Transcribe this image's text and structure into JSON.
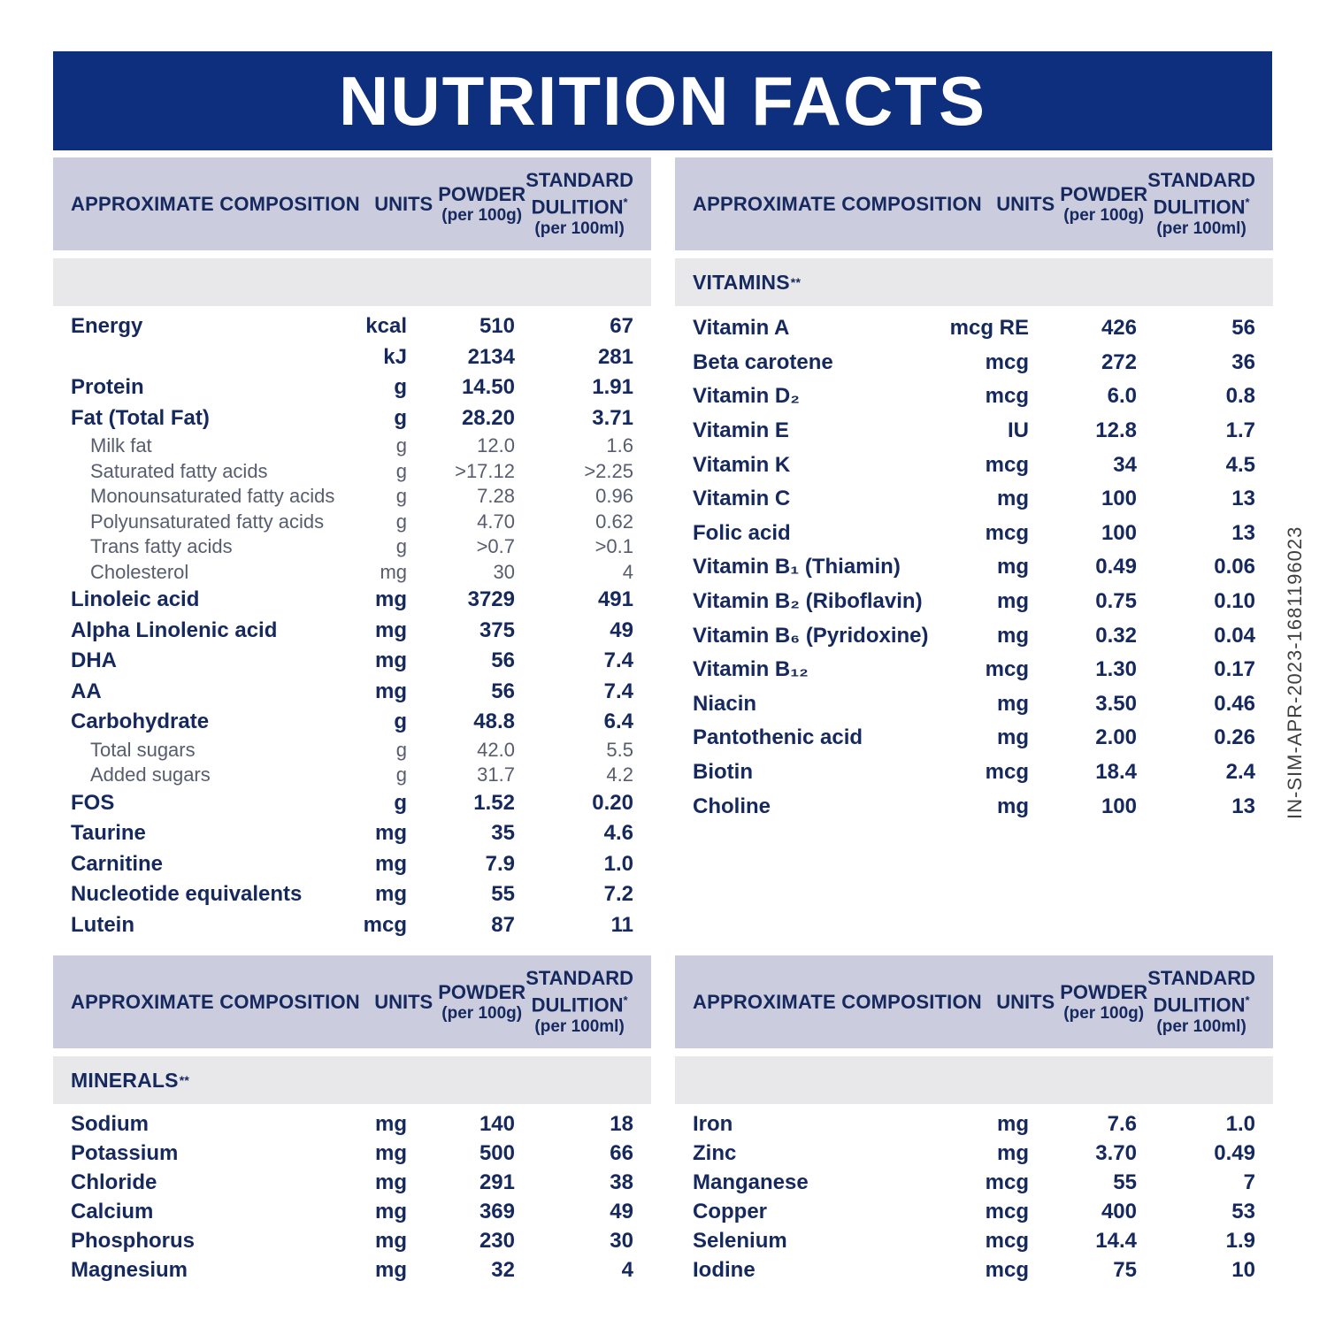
{
  "page": {
    "title": "NUTRITION FACTS",
    "side_code": "IN-SIM-APR-2023-1681196023"
  },
  "colors": {
    "title_bar_bg": "#0D2F7D",
    "title_text": "#FFFFFF",
    "column_header_bg": "#CBCCDD",
    "section_band_bg": "#E8E8EB",
    "text_navy": "#16295F",
    "text_sub_gray": "#575D6E",
    "side_code_text": "#404040"
  },
  "column_headers": {
    "composition": "APPROXIMATE COMPOSITION",
    "units": "UNITS",
    "powder_line1": "POWDER",
    "powder_line2": "(per 100g)",
    "dilution_line1": "STANDARD",
    "dilution_line2": "DULITION",
    "dilution_mark": "*",
    "dilution_line3": "(per 100ml)"
  },
  "tables": [
    {
      "id": "general",
      "section": "",
      "section_marks": "",
      "rows": [
        {
          "name": "Energy",
          "unit": "kcal",
          "powder": "510",
          "dilution": "67"
        },
        {
          "name": "",
          "unit": "kJ",
          "powder": "2134",
          "dilution": "281"
        },
        {
          "name": "Protein",
          "unit": "g",
          "powder": "14.50",
          "dilution": "1.91"
        },
        {
          "name": "Fat (Total Fat)",
          "unit": "g",
          "powder": "28.20",
          "dilution": "3.71"
        },
        {
          "name": "Milk fat",
          "unit": "g",
          "powder": "12.0",
          "dilution": "1.6",
          "sub": true
        },
        {
          "name": "Saturated fatty acids",
          "unit": "g",
          "powder": ">17.12",
          "dilution": ">2.25",
          "sub": true
        },
        {
          "name": "Monounsaturated fatty acids",
          "unit": "g",
          "powder": "7.28",
          "dilution": "0.96",
          "sub": true
        },
        {
          "name": "Polyunsaturated fatty acids",
          "unit": "g",
          "powder": "4.70",
          "dilution": "0.62",
          "sub": true
        },
        {
          "name": "Trans fatty acids",
          "unit": "g",
          "powder": ">0.7",
          "dilution": ">0.1",
          "sub": true
        },
        {
          "name": "Cholesterol",
          "unit": "mg",
          "powder": "30",
          "dilution": "4",
          "sub": true
        },
        {
          "name": "Linoleic acid",
          "unit": "mg",
          "powder": "3729",
          "dilution": "491"
        },
        {
          "name": "Alpha Linolenic acid",
          "unit": "mg",
          "powder": "375",
          "dilution": "49"
        },
        {
          "name": "DHA",
          "unit": "mg",
          "powder": "56",
          "dilution": "7.4"
        },
        {
          "name": "AA",
          "unit": "mg",
          "powder": "56",
          "dilution": "7.4"
        },
        {
          "name": "Carbohydrate",
          "unit": "g",
          "powder": "48.8",
          "dilution": "6.4"
        },
        {
          "name": "Total sugars",
          "unit": "g",
          "powder": "42.0",
          "dilution": "5.5",
          "sub": true
        },
        {
          "name": "Added sugars",
          "unit": "g",
          "powder": "31.7",
          "dilution": "4.2",
          "sub": true
        },
        {
          "name": "FOS",
          "unit": "g",
          "powder": "1.52",
          "dilution": "0.20"
        },
        {
          "name": "Taurine",
          "unit": "mg",
          "powder": "35",
          "dilution": "4.6"
        },
        {
          "name": "Carnitine",
          "unit": "mg",
          "powder": "7.9",
          "dilution": "1.0"
        },
        {
          "name": "Nucleotide equivalents",
          "unit": "mg",
          "powder": "55",
          "dilution": "7.2"
        },
        {
          "name": "Lutein",
          "unit": "mcg",
          "powder": "87",
          "dilution": "11"
        }
      ]
    },
    {
      "id": "vitamins",
      "section": "VITAMINS",
      "section_marks": "**",
      "rows": [
        {
          "name": "Vitamin A",
          "unit": "mcg RE",
          "powder": "426",
          "dilution": "56"
        },
        {
          "name": "Beta carotene",
          "unit": "mcg",
          "powder": "272",
          "dilution": "36"
        },
        {
          "name": "Vitamin D₂",
          "unit": "mcg",
          "powder": "6.0",
          "dilution": "0.8"
        },
        {
          "name": "Vitamin E",
          "unit": "IU",
          "powder": "12.8",
          "dilution": "1.7"
        },
        {
          "name": "Vitamin K",
          "unit": "mcg",
          "powder": "34",
          "dilution": "4.5"
        },
        {
          "name": "Vitamin C",
          "unit": "mg",
          "powder": "100",
          "dilution": "13"
        },
        {
          "name": "Folic acid",
          "unit": "mcg",
          "powder": "100",
          "dilution": "13"
        },
        {
          "name": "Vitamin B₁ (Thiamin)",
          "unit": "mg",
          "powder": "0.49",
          "dilution": "0.06"
        },
        {
          "name": "Vitamin B₂ (Riboflavin)",
          "unit": "mg",
          "powder": "0.75",
          "dilution": "0.10"
        },
        {
          "name": "Vitamin B₆ (Pyridoxine)",
          "unit": "mg",
          "powder": "0.32",
          "dilution": "0.04"
        },
        {
          "name": "Vitamin B₁₂",
          "unit": "mcg",
          "powder": "1.30",
          "dilution": "0.17"
        },
        {
          "name": "Niacin",
          "unit": "mg",
          "powder": "3.50",
          "dilution": "0.46"
        },
        {
          "name": "Pantothenic acid",
          "unit": "mg",
          "powder": "2.00",
          "dilution": "0.26"
        },
        {
          "name": "Biotin",
          "unit": "mcg",
          "powder": "18.4",
          "dilution": "2.4"
        },
        {
          "name": "Choline",
          "unit": "mg",
          "powder": "100",
          "dilution": "13"
        }
      ]
    },
    {
      "id": "minerals",
      "section": "MINERALS",
      "section_marks": "**",
      "rows": [
        {
          "name": "Sodium",
          "unit": "mg",
          "powder": "140",
          "dilution": "18"
        },
        {
          "name": "Potassium",
          "unit": "mg",
          "powder": "500",
          "dilution": "66"
        },
        {
          "name": "Chloride",
          "unit": "mg",
          "powder": "291",
          "dilution": "38"
        },
        {
          "name": "Calcium",
          "unit": "mg",
          "powder": "369",
          "dilution": "49"
        },
        {
          "name": "Phosphorus",
          "unit": "mg",
          "powder": "230",
          "dilution": "30"
        },
        {
          "name": "Magnesium",
          "unit": "mg",
          "powder": "32",
          "dilution": "4"
        }
      ]
    },
    {
      "id": "trace-minerals",
      "section": "",
      "section_marks": "",
      "rows": [
        {
          "name": "Iron",
          "unit": "mg",
          "powder": "7.6",
          "dilution": "1.0"
        },
        {
          "name": "Zinc",
          "unit": "mg",
          "powder": "3.70",
          "dilution": "0.49"
        },
        {
          "name": "Manganese",
          "unit": "mcg",
          "powder": "55",
          "dilution": "7"
        },
        {
          "name": "Copper",
          "unit": "mcg",
          "powder": "400",
          "dilution": "53"
        },
        {
          "name": "Selenium",
          "unit": "mcg",
          "powder": "14.4",
          "dilution": "1.9"
        },
        {
          "name": "Iodine",
          "unit": "mcg",
          "powder": "75",
          "dilution": "10"
        }
      ]
    }
  ]
}
